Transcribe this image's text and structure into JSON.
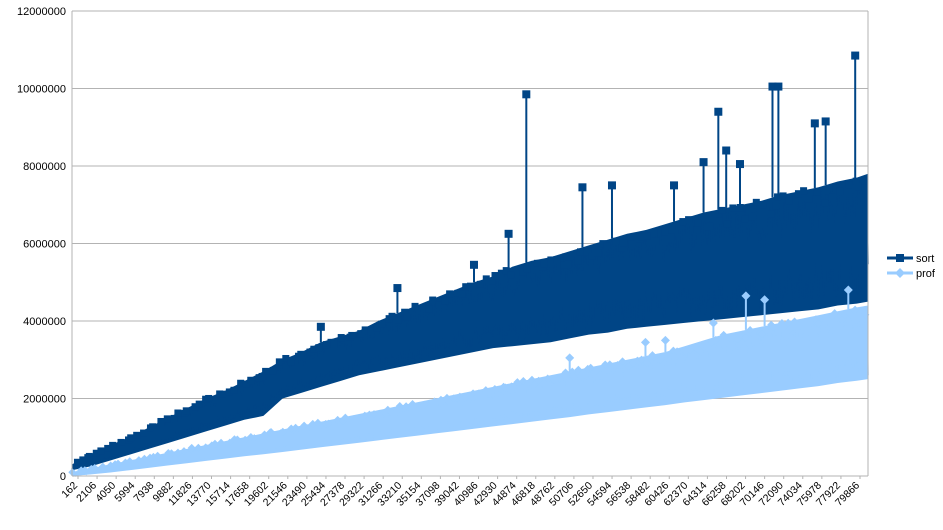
{
  "chart_data": {
    "type": "line",
    "title": "",
    "xlabel": "",
    "ylabel": "",
    "ylim": [
      0,
      12000000
    ],
    "yticks": [
      "0",
      "2000000",
      "4000000",
      "6000000",
      "8000000",
      "10000000",
      "12000000"
    ],
    "ytick_values": [
      0,
      2000000,
      4000000,
      6000000,
      8000000,
      10000000,
      12000000
    ],
    "grid": "horizontal",
    "legend_position": "right",
    "xlim": [
      162,
      81000
    ],
    "x_tick_labels": [
      "162",
      "2106",
      "4050",
      "5994",
      "7938",
      "9882",
      "11826",
      "13770",
      "15714",
      "17658",
      "19602",
      "21546",
      "23490",
      "25434",
      "27378",
      "29322",
      "31266",
      "33210",
      "35154",
      "37098",
      "39042",
      "40986",
      "42930",
      "44874",
      "46818",
      "48762",
      "50706",
      "52650",
      "54594",
      "56538",
      "58482",
      "60426",
      "62370",
      "64314",
      "66258",
      "68202",
      "70146",
      "72090",
      "74034",
      "75978",
      "77922",
      "79866"
    ],
    "series": [
      {
        "name": "sort",
        "color": "#004586",
        "marker": "square",
        "x": [
          162,
          2106,
          4050,
          5994,
          7938,
          9882,
          11826,
          13770,
          15714,
          17658,
          19602,
          21546,
          23490,
          25434,
          27378,
          29322,
          31266,
          33210,
          35154,
          37098,
          39042,
          40986,
          42930,
          44874,
          46818,
          48762,
          50706,
          52650,
          54594,
          56538,
          58482,
          60426,
          62370,
          64314,
          66258,
          68202,
          70146,
          72090,
          74034,
          75978,
          77922,
          79866,
          81000
        ],
        "lower": [
          150000,
          250000,
          400000,
          550000,
          700000,
          850000,
          1000000,
          1150000,
          1300000,
          1450000,
          1550000,
          2000000,
          2150000,
          2300000,
          2450000,
          2600000,
          2700000,
          2800000,
          2900000,
          3000000,
          3100000,
          3200000,
          3300000,
          3350000,
          3400000,
          3450000,
          3550000,
          3650000,
          3700000,
          3800000,
          3850000,
          3900000,
          3950000,
          4000000,
          4050000,
          4100000,
          4150000,
          4200000,
          4250000,
          4300000,
          4400000,
          4450000,
          4500000
        ],
        "upper": [
          300000,
          550000,
          800000,
          1000000,
          1250000,
          1500000,
          1750000,
          2000000,
          2200000,
          2450000,
          2700000,
          3000000,
          3200000,
          3450000,
          3600000,
          3750000,
          4000000,
          4200000,
          4400000,
          4600000,
          4800000,
          5000000,
          5150000,
          5400000,
          5550000,
          5650000,
          5800000,
          5950000,
          6100000,
          6250000,
          6350000,
          6500000,
          6650000,
          6800000,
          6900000,
          7000000,
          7100000,
          7250000,
          7350000,
          7450000,
          7600000,
          7700000,
          7800000
        ],
        "peaks": [
          {
            "x": 25434,
            "y": 3850000
          },
          {
            "x": 33210,
            "y": 4850000
          },
          {
            "x": 40986,
            "y": 5450000
          },
          {
            "x": 44500,
            "y": 6250000
          },
          {
            "x": 46300,
            "y": 9850000
          },
          {
            "x": 52000,
            "y": 7450000
          },
          {
            "x": 55000,
            "y": 7500000
          },
          {
            "x": 61300,
            "y": 7500000
          },
          {
            "x": 64300,
            "y": 8100000
          },
          {
            "x": 65800,
            "y": 9400000
          },
          {
            "x": 66600,
            "y": 8400000
          },
          {
            "x": 68000,
            "y": 8050000
          },
          {
            "x": 71300,
            "y": 10050000
          },
          {
            "x": 71900,
            "y": 10050000
          },
          {
            "x": 75600,
            "y": 9100000
          },
          {
            "x": 76700,
            "y": 9150000
          },
          {
            "x": 79700,
            "y": 10850000
          }
        ]
      },
      {
        "name": "prof",
        "color": "#99ccff",
        "marker": "diamond",
        "x": [
          162,
          2106,
          4050,
          5994,
          7938,
          9882,
          11826,
          13770,
          15714,
          17658,
          19602,
          21546,
          23490,
          25434,
          27378,
          29322,
          31266,
          33210,
          35154,
          37098,
          39042,
          40986,
          42930,
          44874,
          46818,
          48762,
          50706,
          52650,
          54594,
          56538,
          58482,
          60426,
          62370,
          64314,
          66258,
          68202,
          70146,
          72090,
          74034,
          75978,
          77922,
          79866,
          81000
        ],
        "lower": [
          0,
          40000,
          90000,
          150000,
          210000,
          270000,
          330000,
          390000,
          450000,
          510000,
          560000,
          620000,
          680000,
          740000,
          800000,
          860000,
          920000,
          980000,
          1040000,
          1100000,
          1160000,
          1220000,
          1280000,
          1340000,
          1400000,
          1460000,
          1520000,
          1590000,
          1650000,
          1710000,
          1770000,
          1830000,
          1900000,
          1960000,
          2020000,
          2080000,
          2140000,
          2200000,
          2260000,
          2320000,
          2400000,
          2460000,
          2500000
        ],
        "upper": [
          100000,
          200000,
          300000,
          400000,
          500000,
          600000,
          700000,
          800000,
          900000,
          1000000,
          1100000,
          1200000,
          1300000,
          1400000,
          1500000,
          1600000,
          1700000,
          1800000,
          1900000,
          2000000,
          2100000,
          2200000,
          2300000,
          2400000,
          2500000,
          2600000,
          2700000,
          2800000,
          2900000,
          3000000,
          3100000,
          3200000,
          3350000,
          3500000,
          3650000,
          3750000,
          3850000,
          3950000,
          4050000,
          4150000,
          4250000,
          4350000,
          4400000
        ],
        "peaks": [
          {
            "x": 50706,
            "y": 3050000
          },
          {
            "x": 58400,
            "y": 3450000
          },
          {
            "x": 60426,
            "y": 3500000
          },
          {
            "x": 65300,
            "y": 3950000
          },
          {
            "x": 68600,
            "y": 4650000
          },
          {
            "x": 70500,
            "y": 4550000
          },
          {
            "x": 79000,
            "y": 4800000
          }
        ]
      }
    ]
  }
}
